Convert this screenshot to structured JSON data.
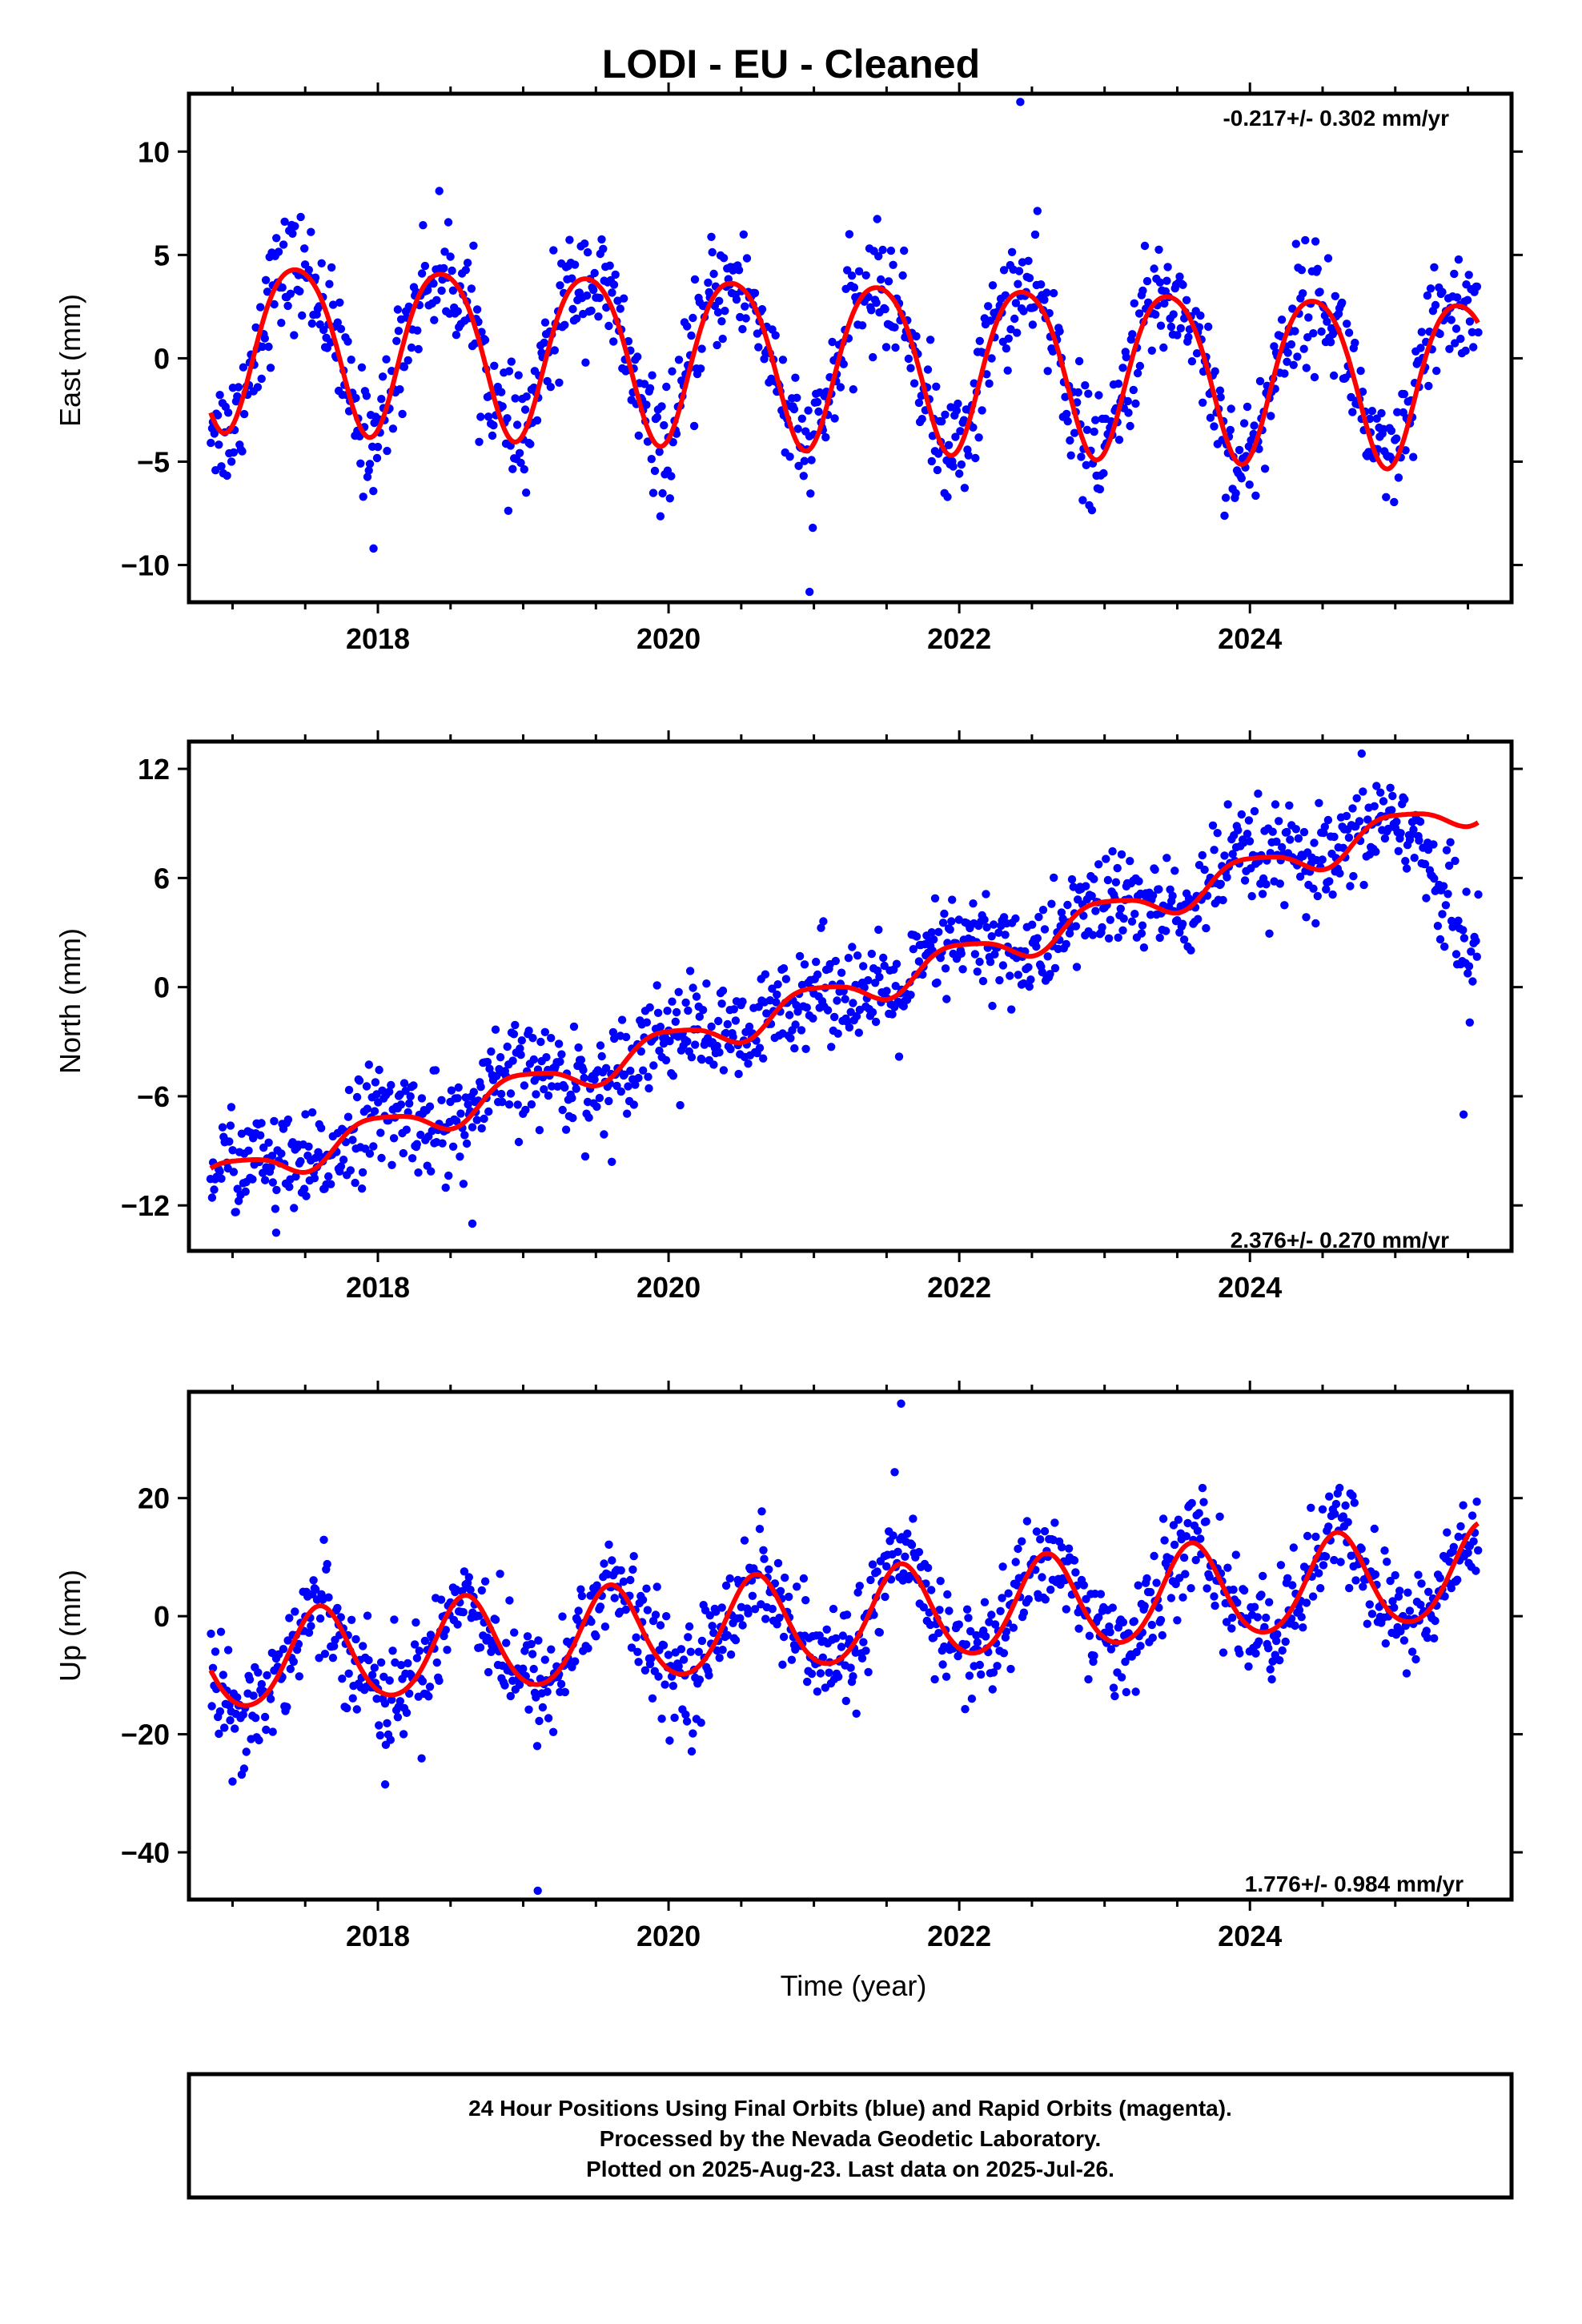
{
  "title": "LODI  - EU - Cleaned",
  "colors": {
    "final_orbits": "#0000ff",
    "rapid_orbits": "#ff00ff",
    "model": "#ff0000",
    "frame": "#000000"
  },
  "chart_data": [
    {
      "type": "scatter",
      "component": "East",
      "ylabel": "East (mm)",
      "xlabel": "",
      "xlim": [
        2016.7,
        2025.8
      ],
      "ylim": [
        -11.8,
        12.8
      ],
      "xticks": [
        2018,
        2020,
        2022,
        2024
      ],
      "xtick_labels": [
        "2018",
        "2020",
        "2022",
        "2024"
      ],
      "yticks": [
        -10,
        -5,
        0,
        5,
        10
      ],
      "ytick_labels": [
        "−10",
        "−5",
        "0",
        "5",
        "10"
      ],
      "rate_text": "-0.217+/- 0.302 mm/yr",
      "rate_position": "top-right",
      "grid": false,
      "series": [
        {
          "kind": "points",
          "color": "#0000ff",
          "x_start": 2016.85,
          "x_end": 2025.57,
          "count": 1100,
          "description": "daily positions",
          "trend_mm_per_yr": -0.217,
          "offset_mm": 0.8,
          "annual_amplitude_mm": 4.5,
          "annual_peak_decimal": 0.45,
          "scatter_mm": 1.4
        },
        {
          "kind": "line",
          "color": "#ff0000",
          "model": {
            "x0": 2021.0,
            "offset": 0.0,
            "slope": -0.217,
            "annual_amplitude": 4.0,
            "annual_peak": 0.44,
            "semiannual_amplitude": 0.5,
            "semiannual_peak": 0.2
          }
        }
      ],
      "outliers": [
        [
          2017.97,
          -9.2
        ],
        [
          2020.97,
          -11.3
        ],
        [
          2022.42,
          12.4
        ],
        [
          2019.02,
          -6.5
        ]
      ]
    },
    {
      "type": "scatter",
      "component": "North",
      "ylabel": "North (mm)",
      "xlabel": "",
      "xlim": [
        2016.7,
        2025.8
      ],
      "ylim": [
        -14.5,
        13.5
      ],
      "xticks": [
        2018,
        2020,
        2022,
        2024
      ],
      "xtick_labels": [
        "2018",
        "2020",
        "2022",
        "2024"
      ],
      "yticks": [
        -12,
        -6,
        0,
        6,
        12
      ],
      "ytick_labels": [
        "−12",
        "−6",
        "0",
        "6",
        "12"
      ],
      "rate_text": "2.376+/- 0.270 mm/yr",
      "rate_position": "bottom-right",
      "grid": false,
      "series": [
        {
          "kind": "points",
          "color": "#0000ff",
          "x_start": 2016.85,
          "x_end": 2025.57,
          "count": 1100,
          "description": "daily positions",
          "trend_mm_per_yr": 2.376,
          "scatter_mm": 1.4,
          "late_drop": {
            "start": 2025.05,
            "drop_mm_per_yr": 16.0
          }
        },
        {
          "kind": "line",
          "color": "#ff0000",
          "model": {
            "x0": 2021.0,
            "offset": -0.8,
            "slope": 2.376,
            "annual_amplitude": 0.9,
            "annual_peak": 0.0,
            "semiannual_amplitude": 0.2,
            "semiannual_peak": 0.3
          }
        }
      ],
      "outliers": [
        [
          2018.65,
          -13.0
        ],
        [
          2017.3,
          -13.5
        ],
        [
          2025.47,
          -7.0
        ]
      ]
    },
    {
      "type": "scatter",
      "component": "Up",
      "ylabel": "Up (mm)",
      "xlabel": "Time (year)",
      "xlim": [
        2016.7,
        2025.8
      ],
      "ylim": [
        -48,
        38
      ],
      "xticks": [
        2018,
        2020,
        2022,
        2024
      ],
      "xtick_labels": [
        "2018",
        "2020",
        "2022",
        "2024"
      ],
      "yticks": [
        -40,
        -20,
        0,
        20
      ],
      "ytick_labels": [
        "−40",
        "−20",
        "0",
        "20"
      ],
      "rate_text": "1.776+/- 0.984 mm/yr",
      "rate_position": "bottom-right",
      "grid": false,
      "series": [
        {
          "kind": "points",
          "color": "#0000ff",
          "x_start": 2016.85,
          "x_end": 2025.57,
          "count": 1100,
          "description": "daily positions",
          "trend_mm_per_yr": 1.776,
          "offset_mm": -1.5,
          "annual_amplitude_mm": 9.0,
          "annual_peak_decimal": 0.62,
          "scatter_mm": 4.5
        },
        {
          "kind": "line",
          "color": "#ff0000",
          "model": {
            "x0": 2021.0,
            "offset": -1.0,
            "slope": 1.776,
            "annual_amplitude": 8.0,
            "annual_peak": 0.6,
            "semiannual_amplitude": 0.8,
            "semiannual_peak": 0.1
          }
        }
      ],
      "outliers": [
        [
          2019.1,
          -46.5
        ],
        [
          2017.0,
          -28.0
        ],
        [
          2021.6,
          36.0
        ],
        [
          2018.05,
          -28.5
        ]
      ]
    }
  ],
  "footer": {
    "line1": "24 Hour Positions Using Final Orbits (blue) and Rapid Orbits (magenta).",
    "line2": "Processed by the Nevada Geodetic Laboratory.",
    "line3": "Plotted on 2025-Aug-23. Last data on 2025-Jul-26."
  }
}
